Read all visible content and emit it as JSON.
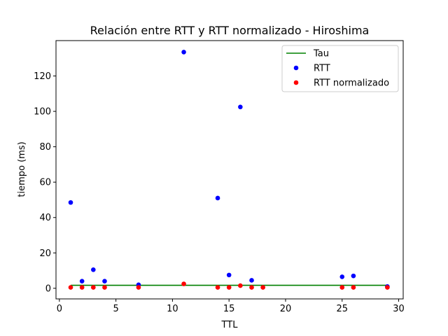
{
  "chart_data": {
    "type": "scatter",
    "title": "Relación entre RTT y RTT normalizado - Hiroshima",
    "xlabel": "TTL",
    "ylabel": "tiempo (ms)",
    "xlim": [
      -0.3,
      30.4
    ],
    "ylim": [
      -6,
      140
    ],
    "xticks": [
      0,
      5,
      10,
      15,
      20,
      25,
      30
    ],
    "yticks": [
      0,
      20,
      40,
      60,
      80,
      100,
      120
    ],
    "grid": false,
    "legend_position": "top-right",
    "series": [
      {
        "name": "Tau",
        "kind": "line",
        "color": "#008000",
        "x": [
          1,
          29
        ],
        "y": [
          1.7,
          1.7
        ]
      },
      {
        "name": "RTT",
        "kind": "scatter",
        "color": "#0000ff",
        "x": [
          1,
          2,
          3,
          4,
          7,
          11,
          14,
          15,
          16,
          17,
          25,
          26,
          29
        ],
        "y": [
          48.5,
          4.0,
          10.5,
          4.0,
          2.0,
          133.5,
          51.0,
          7.5,
          102.5,
          4.5,
          6.5,
          7.0,
          1.0
        ]
      },
      {
        "name": "RTT normalizado",
        "kind": "scatter",
        "color": "#ff0000",
        "x": [
          1,
          2,
          3,
          4,
          7,
          11,
          14,
          15,
          16,
          17,
          18,
          25,
          26,
          29
        ],
        "y": [
          0.5,
          0.5,
          0.5,
          0.5,
          0.5,
          2.5,
          0.5,
          0.5,
          1.5,
          0.5,
          0.5,
          0.5,
          0.5,
          0.5
        ]
      }
    ]
  }
}
